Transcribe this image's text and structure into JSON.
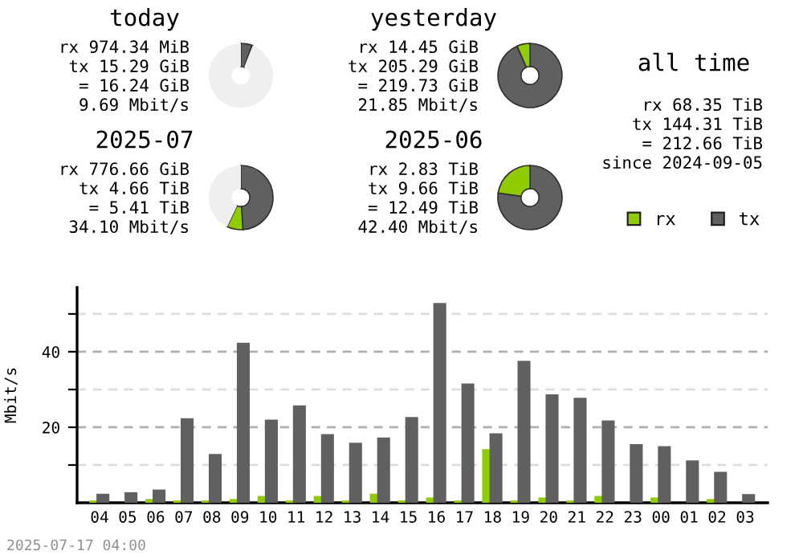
{
  "chart_data": [
    {
      "type": "donut",
      "title": "today",
      "categories": [
        null,
        null,
        null
      ],
      "values": [
        5.7,
        0.3,
        94
      ],
      "colors": [
        "#606060",
        "#8fcd00",
        "#efefef"
      ],
      "annotations": [
        "rx 974.34 MiB",
        "tx 15.29 GiB",
        "= 16.24 GiB",
        "9.69 Mbit/s"
      ]
    },
    {
      "type": "donut",
      "title": "yesterday",
      "categories": [
        null,
        null,
        null
      ],
      "values": [
        93.4,
        6.6,
        0
      ],
      "colors": [
        "#606060",
        "#8fcd00",
        "#efefef"
      ],
      "annotations": [
        "rx 14.45 GiB",
        "tx 205.29 GiB",
        "= 219.73 GiB",
        "21.85 Mbit/s"
      ]
    },
    {
      "type": "other",
      "title": "all time",
      "annotations": [
        "rx 68.35 TiB",
        "tx 144.31 TiB",
        "= 212.66 TiB",
        "since 2024-09-05"
      ]
    },
    {
      "type": "donut",
      "title": "2025-07",
      "categories": [
        null,
        null,
        null
      ],
      "values": [
        49,
        8,
        43
      ],
      "colors": [
        "#606060",
        "#8fcd00",
        "#efefef"
      ],
      "annotations": [
        "rx 776.66 GiB",
        "tx 4.66 TiB",
        "= 5.41 TiB",
        "34.10 Mbit/s"
      ]
    },
    {
      "type": "donut",
      "title": "2025-06",
      "categories": [
        null,
        null,
        null
      ],
      "values": [
        77.3,
        22.7,
        0
      ],
      "colors": [
        "#606060",
        "#8fcd00",
        "#efefef"
      ],
      "annotations": [
        "rx 2.83 TiB",
        "tx 9.66 TiB",
        "= 12.49 TiB",
        "42.40 Mbit/s"
      ]
    },
    {
      "type": "bar",
      "ylabel": "Mbit/s",
      "legend": "top right",
      "grid": "y",
      "categories": [
        "04",
        "05",
        "06",
        "07",
        "08",
        "09",
        "10",
        "11",
        "12",
        "13",
        "14",
        "15",
        "16",
        "17",
        "18",
        "19",
        "20",
        "21",
        "22",
        "23",
        "00",
        "01",
        "02",
        "03"
      ],
      "series": [
        {
          "name": "rx",
          "color": "#8fcd00",
          "values": [
            0.6,
            0,
            1.0,
            0.6,
            0.6,
            1.0,
            1.8,
            0.6,
            1.8,
            0.6,
            2.4,
            0.6,
            1.4,
            0.6,
            14.2,
            0.6,
            1.4,
            0.6,
            1.8,
            0,
            1.4,
            0,
            1.0,
            0
          ]
        },
        {
          "name": "tx",
          "color": "#606060",
          "values": [
            2.4,
            2.8,
            3.5,
            22.4,
            12.9,
            42.4,
            22.0,
            25.8,
            18.2,
            15.9,
            17.3,
            22.7,
            52.9,
            31.6,
            18.4,
            37.6,
            28.7,
            27.8,
            21.8,
            15.5,
            15.0,
            11.2,
            8.2,
            2.3
          ]
        }
      ],
      "ylim": [
        0,
        57
      ],
      "yticks": [
        {
          "value": 10,
          "label": null
        },
        20,
        {
          "value": 30,
          "label": null
        },
        40,
        {
          "value": 50,
          "label": null
        }
      ],
      "annotations": [
        "2025-07-17 04:00"
      ]
    }
  ]
}
